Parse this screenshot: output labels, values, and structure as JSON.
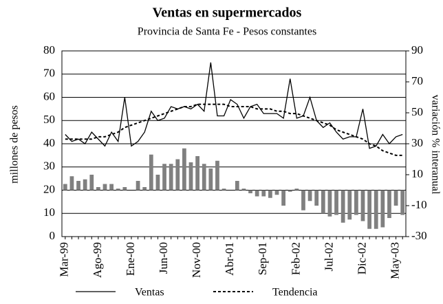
{
  "chart_data": {
    "type": "line",
    "title": "Ventas en supermercados",
    "subtitle": "Provincia de Santa Fe - Pesos constantes",
    "y_label": "millones de pesos",
    "y2_label": "variación % interanual",
    "categories": [
      "Mar-99",
      null,
      null,
      null,
      null,
      "Ago-99",
      null,
      null,
      null,
      null,
      "Ene-00",
      null,
      null,
      null,
      null,
      "Jun-00",
      null,
      null,
      null,
      null,
      "Nov-00",
      null,
      null,
      null,
      null,
      "Abr-01",
      null,
      null,
      null,
      null,
      "Sep-01",
      null,
      null,
      null,
      null,
      "Feb-02",
      null,
      null,
      null,
      null,
      "Jul-02",
      null,
      null,
      null,
      null,
      "Dic-02",
      null,
      null,
      null,
      null,
      "May-03",
      null
    ],
    "series": [
      {
        "name": "Ventas",
        "color": "#000000",
        "style": "solid",
        "values": [
          44,
          41,
          42,
          40,
          45,
          42,
          39,
          45,
          41,
          60,
          39,
          41,
          45,
          54,
          50,
          51,
          56,
          55,
          56,
          55,
          57,
          54,
          75,
          52,
          52,
          59,
          57,
          51,
          56,
          57,
          53,
          53,
          53,
          51,
          68,
          51,
          52,
          60,
          50,
          47,
          49,
          45,
          42,
          43,
          43,
          55,
          38,
          39,
          44,
          40,
          43,
          44
        ]
      },
      {
        "name": "Tendencia",
        "color": "#000000",
        "style": "dashed",
        "values": [
          42,
          42,
          42,
          42,
          42,
          43,
          43,
          44,
          45,
          47,
          48,
          49,
          50,
          51,
          52,
          53,
          54,
          55,
          56,
          56,
          57,
          57,
          57,
          57,
          57,
          56,
          56,
          56,
          56,
          55,
          55,
          55,
          54,
          54,
          53,
          53,
          52,
          51,
          50,
          49,
          48,
          46,
          45,
          44,
          43,
          42,
          40,
          39,
          37,
          36,
          35,
          35
        ]
      },
      {
        "type": "bar",
        "axis": "y2",
        "color": "#808080",
        "values": [
          4,
          9,
          6,
          7,
          10,
          2,
          4,
          4,
          1,
          2,
          0,
          6,
          2,
          23,
          10,
          17,
          17,
          20,
          27,
          18,
          22,
          17,
          14,
          19,
          1,
          0,
          6,
          1,
          -2,
          -4,
          -4,
          -5,
          -3,
          -10,
          -1,
          1,
          -13,
          -7,
          -10,
          -15,
          -17,
          -16,
          -21,
          -19,
          -16,
          -20,
          -25,
          -25,
          -24,
          -18,
          -10,
          -16
        ]
      }
    ],
    "ylim": [
      0,
      80
    ],
    "yticks": [
      0,
      10,
      20,
      30,
      40,
      50,
      60,
      70,
      80
    ],
    "y2lim": [
      -30,
      90
    ],
    "y2ticks": [
      -30,
      -10,
      10,
      30,
      50,
      70,
      90
    ],
    "grid": true,
    "legend": "bottom"
  }
}
